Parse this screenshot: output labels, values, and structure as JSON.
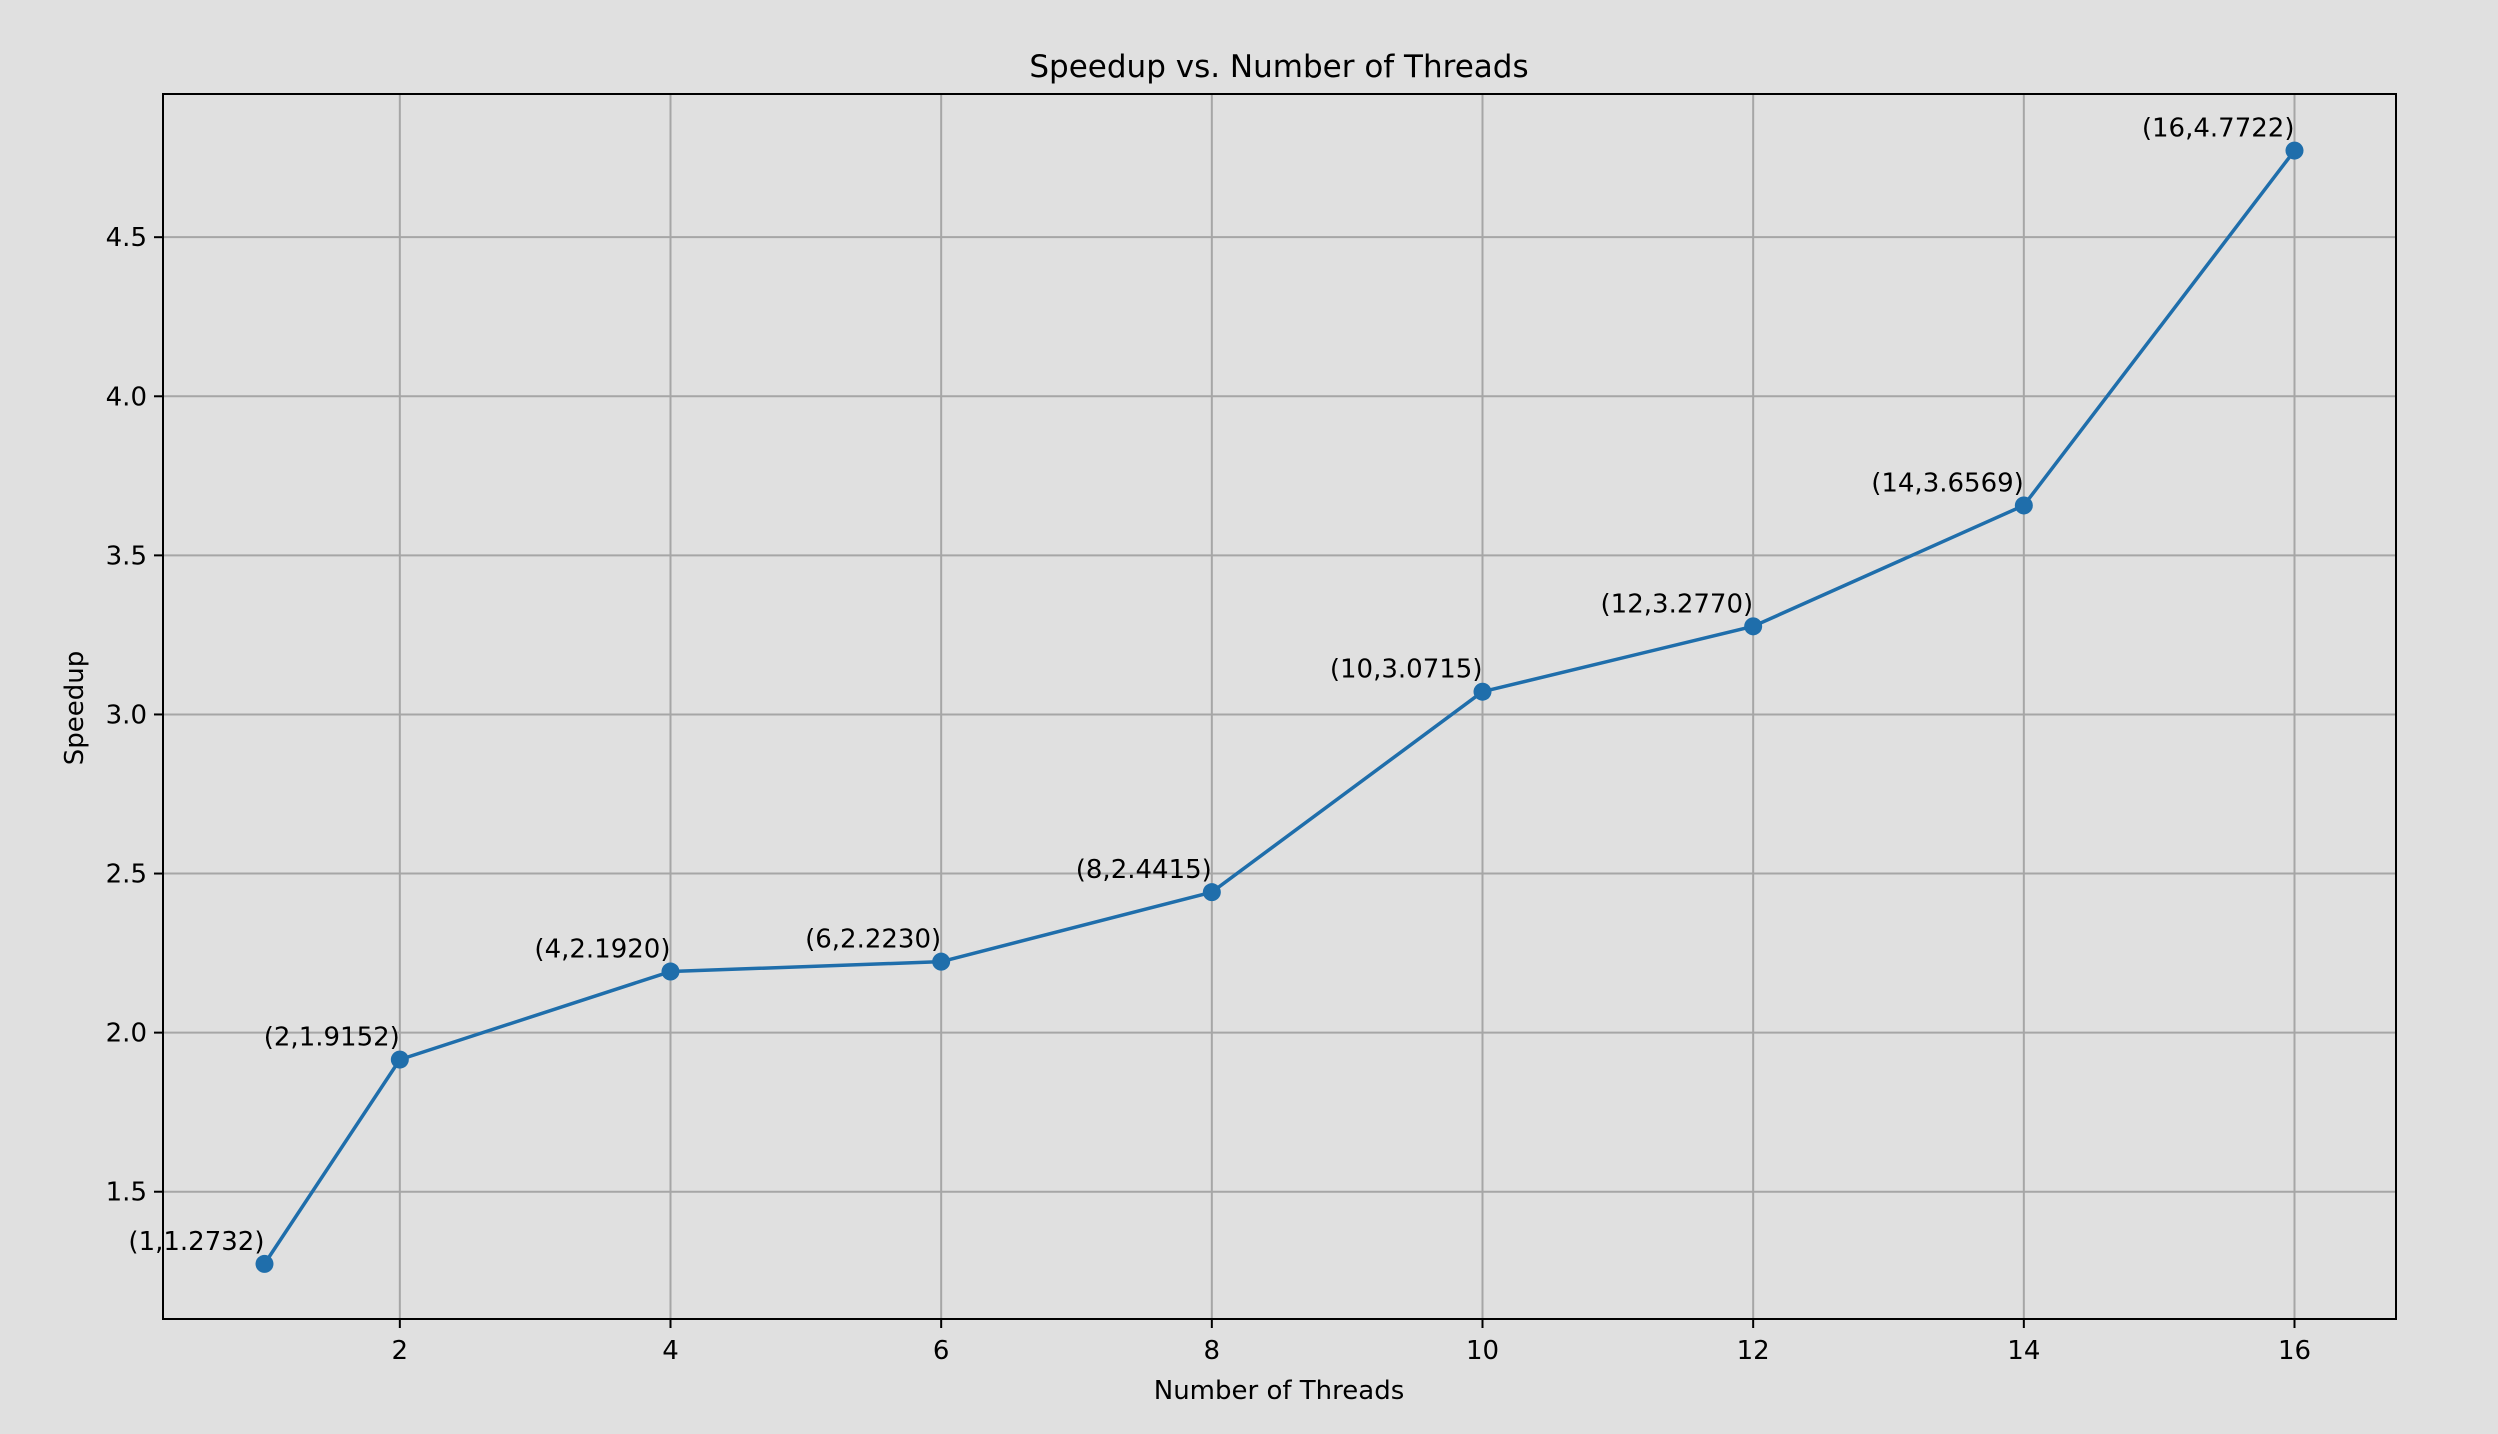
{
  "chart_data": {
    "type": "line",
    "title": "Speedup vs. Number of Threads",
    "xlabel": "Number of Threads",
    "ylabel": "Speedup",
    "x": [
      1,
      2,
      4,
      6,
      8,
      10,
      12,
      14,
      16
    ],
    "series": [
      {
        "values": [
          1.2732,
          1.9152,
          2.192,
          2.223,
          2.4415,
          3.0715,
          3.277,
          3.6569,
          4.7722
        ],
        "point_labels": [
          "(1,1.2732)",
          "(2,1.9152)",
          "(4,2.1920)",
          "(6,2.2230)",
          "(8,2.4415)",
          "(10,3.0715)",
          "(12,3.2770)",
          "(14,3.6569)",
          "(16,4.7722)"
        ]
      }
    ],
    "xlim": [
      0.25,
      16.75
    ],
    "ylim": [
      1.1,
      4.95
    ],
    "xticks": [
      2,
      4,
      6,
      8,
      10,
      12,
      14,
      16
    ],
    "xtick_labels": [
      "2",
      "4",
      "6",
      "8",
      "10",
      "12",
      "14",
      "16"
    ],
    "yticks": [
      1.5,
      2.0,
      2.5,
      3.0,
      3.5,
      4.0,
      4.5
    ],
    "ytick_labels": [
      "1.5",
      "2.0",
      "2.5",
      "3.0",
      "3.5",
      "4.0",
      "4.5"
    ],
    "grid": true,
    "colors": {
      "background": "#e0e0e0",
      "line": "#1f6eab",
      "marker": "#1f6eab",
      "grid": "#a6a6a6",
      "axes": "#000000"
    }
  }
}
